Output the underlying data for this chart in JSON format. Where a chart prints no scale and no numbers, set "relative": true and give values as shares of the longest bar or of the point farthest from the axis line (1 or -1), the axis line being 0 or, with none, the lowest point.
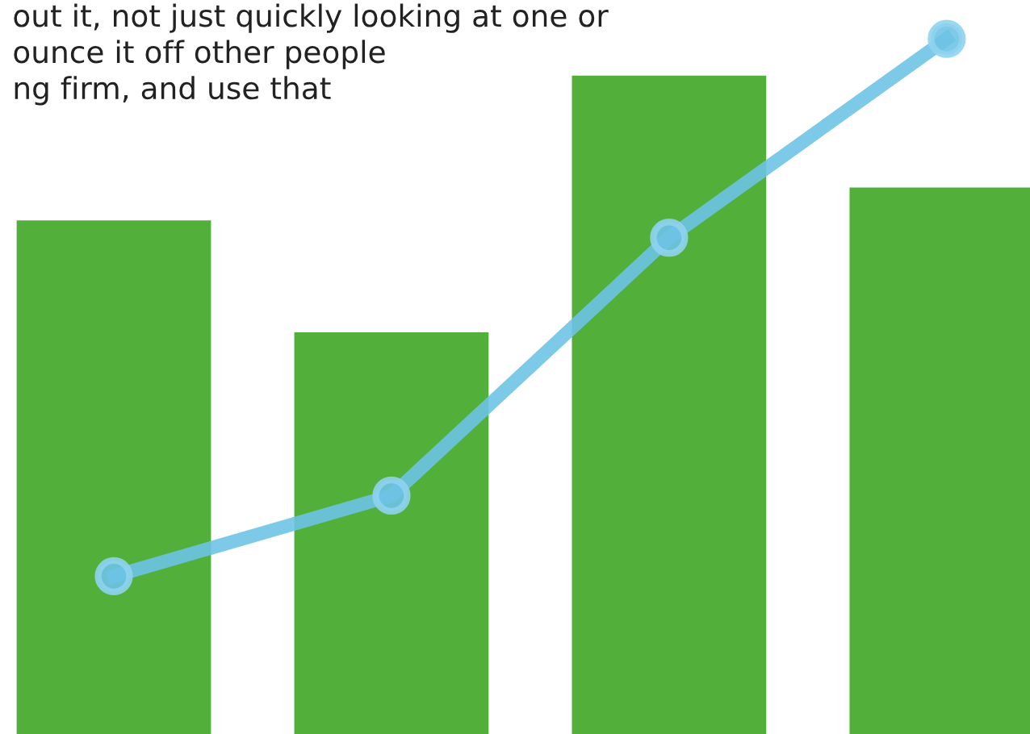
{
  "chart_data": [
    {
      "type": "bar",
      "relative": true,
      "categories": [
        null,
        null,
        null,
        null
      ],
      "legend": false,
      "grid": false,
      "series": [
        {
          "type": "bar",
          "color": "#52b03a",
          "values": [
            0.78,
            0.61,
            1.0,
            0.83
          ]
        }
      ],
      "annotations": [
        "out it, not just quickly looking at one or\nounce it off other people\nng firm, and use that"
      ]
    },
    {
      "type": "line",
      "relative": true,
      "categories": [
        null,
        null,
        null,
        null
      ],
      "marker": "circle",
      "legend": false,
      "grid": false,
      "series": [
        {
          "type": "line",
          "color": "#6ec3e6",
          "values": [
            0.0,
            0.15,
            0.63,
            1.0
          ]
        }
      ]
    }
  ]
}
